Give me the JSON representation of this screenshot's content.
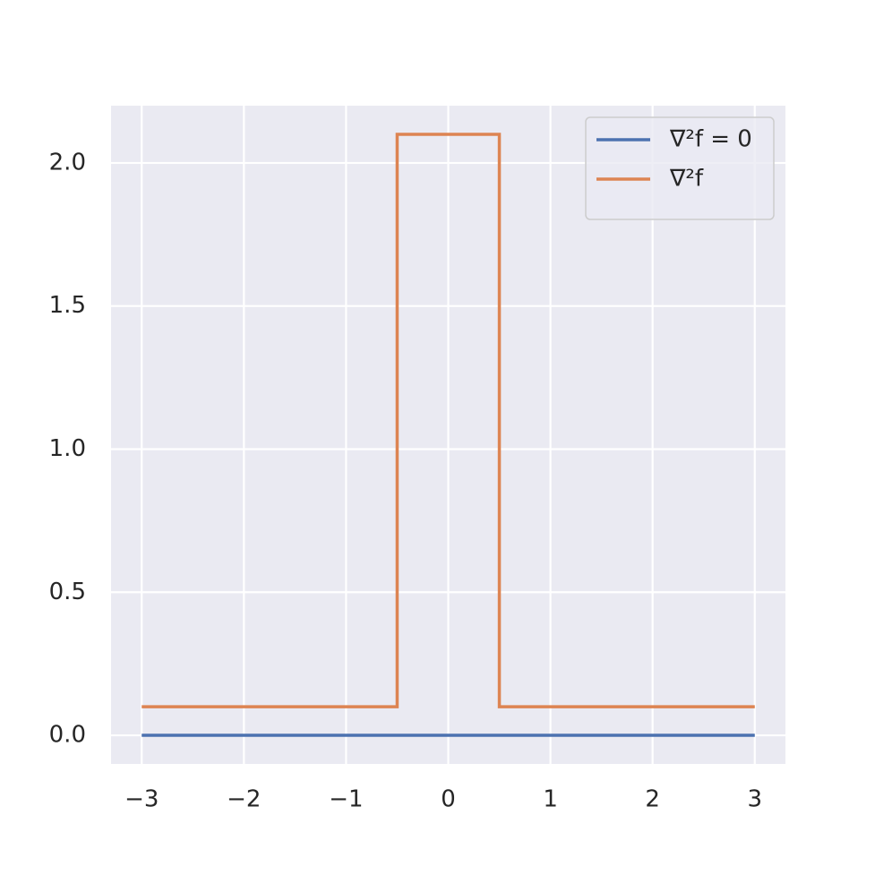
{
  "chart_data": {
    "type": "line",
    "series": [
      {
        "name": "∇²f = 0",
        "color": "#4c72b0",
        "x": [
          -3,
          3
        ],
        "values": [
          0,
          0
        ]
      },
      {
        "name": "∇²f",
        "color": "#dd8452",
        "x": [
          -3,
          -0.5,
          -0.5,
          0.5,
          0.5,
          3
        ],
        "values": [
          0.1,
          0.1,
          2.1,
          2.1,
          0.1,
          0.1
        ]
      }
    ],
    "xlim": [
      -3.3,
      3.3
    ],
    "ylim": [
      -0.1,
      2.2
    ],
    "xticks": [
      {
        "value": -3,
        "label": "−3"
      },
      {
        "value": -2,
        "label": "−2"
      },
      {
        "value": -1,
        "label": "−1"
      },
      0,
      1,
      2,
      3
    ],
    "yticks": [
      {
        "value": 0,
        "label": "0.0"
      },
      0.5,
      {
        "value": 1,
        "label": "1.0"
      },
      1.5,
      {
        "value": 2,
        "label": "2.0"
      }
    ],
    "grid": true,
    "legend": "upper right"
  }
}
